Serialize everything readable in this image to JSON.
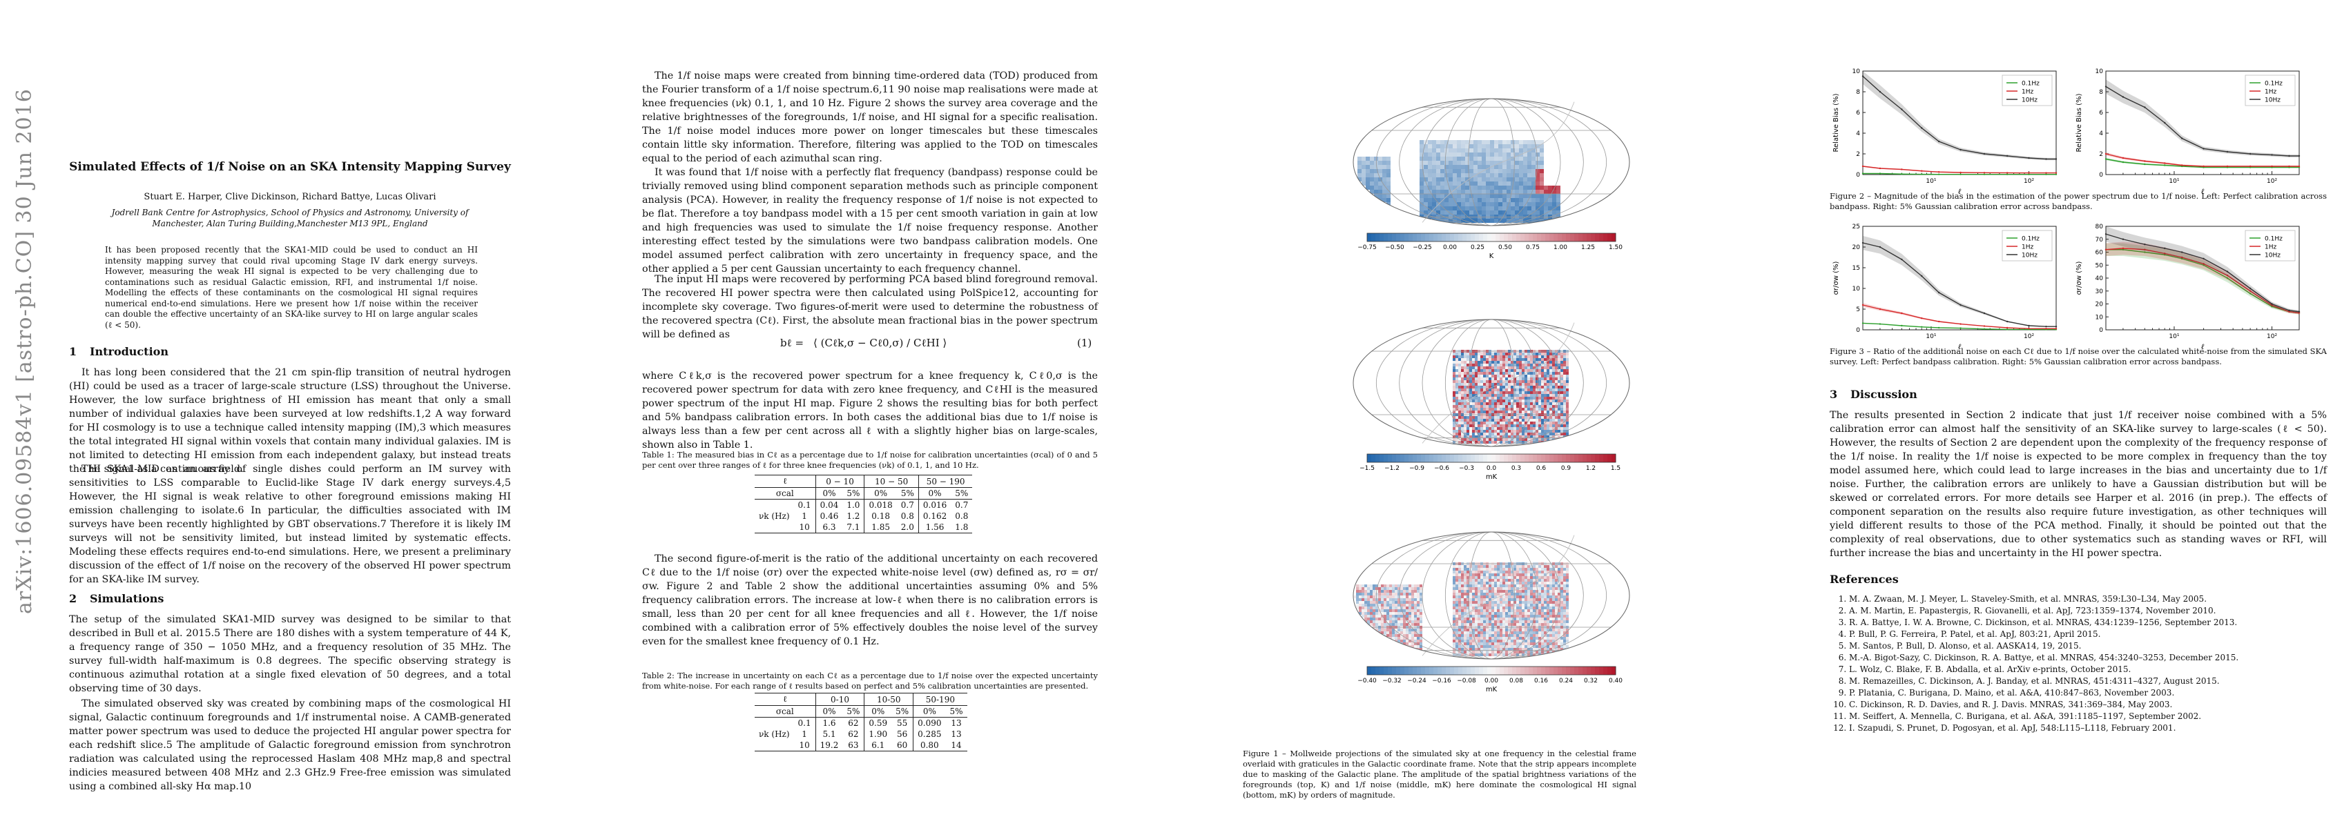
{
  "arxiv_stamp": "arXiv:1606.09584v1  [astro-ph.CO]  30 Jun 2016",
  "paper": {
    "title": "Simulated Effects of 1/f Noise on an SKA Intensity Mapping Survey",
    "authors": "Stuart E. Harper, Clive Dickinson, Richard Battye, Lucas Olivari",
    "affiliation": "Jodrell Bank Centre for Astrophysics, School of Physics and Astronomy, University of Manchester, Alan Turing Building,Manchester M13 9PL, England",
    "abstract": "It has been proposed recently that the SKA1-MID could be used to conduct an HI intensity mapping survey that could rival upcoming Stage IV dark energy surveys. However, measuring the weak HI signal is expected to be very challenging due to contaminations such as residual Galactic emission, RFI, and instrumental 1/f noise. Modelling the effects of these contaminants on the cosmological HI signal requires numerical end-to-end simulations. Here we present how 1/f noise within the receiver can double the effective uncertainty of an SKA-like survey to HI on large angular scales (ℓ < 50).",
    "sec1_num": "1",
    "sec1_title": "Introduction",
    "sec1_p1": "It has long been considered that the 21 cm spin-flip transition of neutral hydrogen (HI) could be used as a tracer of large-scale structure (LSS) throughout the Universe. However, the low surface brightness of HI emission has meant that only a small number of individual galaxies have been surveyed at low redshifts.1,2 A way forward for HI cosmology is to use a technique called intensity mapping (IM),3 which measures the total integrated HI signal within voxels that contain many individual galaxies. IM is not limited to detecting HI emission from each independent galaxy, but instead treats the HI signal as a continuous field.",
    "sec1_p2": "The SKA1-MID as an array of single dishes could perform an IM survey with sensitivities to LSS comparable to Euclid-like Stage IV dark energy surveys.4,5 However, the HI signal is weak relative to other foreground emissions making HI emission challenging to isolate.6 In particular, the difficulties associated with IM surveys have been recently highlighted by GBT observations.7 Therefore it is likely IM surveys will not be sensitivity limited, but instead limited by systematic effects. Modeling these effects requires end-to-end simulations. Here, we present a preliminary discussion of the effect of 1/f noise on the recovery of the observed HI power spectrum for an SKA-like IM survey.",
    "sec2_num": "2",
    "sec2_title": "Simulations",
    "sec2_p1": "The setup of the simulated SKA1-MID survey was designed to be similar to that described in Bull et al. 2015.5 There are 180 dishes with a system temperature of 44 K, a frequency range of 350 − 1050 MHz, and a frequency resolution of 35 MHz. The survey full-width half-maximum is 0.8 degrees. The specific observing strategy is continuous azimuthal rotation at a single fixed elevation of 50 degrees, and a total observing time of 30 days.",
    "sec2_p2": "The simulated observed sky was created by combining maps of the cosmological HI signal, Galactic continuum foregrounds and 1/f instrumental noise. A CAMB-generated matter power spectrum was used to deduce the projected HI angular power spectra for each redshift slice.5 The amplitude of Galactic foreground emission from synchrotron radiation was calculated using the reprocessed Haslam 408 MHz map,8 and spectral indicies measured between 408 MHz and 2.3 GHz.9 Free-free emission was simulated using a combined all-sky Hα map.10",
    "col2_p1": "The 1/f noise maps were created from binning time-ordered data (TOD) produced from the Fourier transform of a 1/f noise spectrum.6,11 90 noise map realisations were made at knee frequencies (νk) 0.1, 1, and 10 Hz. Figure 2 shows the survey area coverage and the relative brightnesses of the foregrounds, 1/f noise, and HI signal for a specific realisation. The 1/f noise model induces more power on longer timescales but these timescales contain little sky information. Therefore, filtering was applied to the TOD on timescales equal to the period of each azimuthal scan ring.",
    "col2_p2": "It was found that 1/f noise with a perfectly flat frequency (bandpass) response could be trivially removed using blind component separation methods such as principle component analysis (PCA). However, in reality the frequency response of 1/f noise is not expected to be flat. Therefore a toy bandpass model with a 15 per cent smooth variation in gain at low and high frequencies was used to simulate the 1/f noise frequency response. Another interesting effect tested by the simulations were two bandpass calibration models. One model assumed perfect calibration with zero uncertainty in frequency space, and the other applied a 5 per cent Gaussian uncertainty to each frequency channel.",
    "col2_p3": "The input HI maps were recovered by performing PCA based blind foreground removal. The recovered HI power spectra were then calculated using PolSpice12, accounting for incomplete sky coverage. Two figures-of-merit were used to determine the robustness of the recovered spectra (Cℓ). First, the absolute mean fractional bias in the power spectrum will be defined as",
    "eq_lhs": "bℓ =",
    "eq_body": "⟨ (Cℓk,σ − Cℓ0,σ) / CℓHI ⟩",
    "eq_num": "(1)",
    "col2_p4": "where Cℓk,σ is the recovered power spectrum for a knee frequency k, Cℓ0,σ is the recovered power spectrum for data with zero knee frequency, and CℓHI is the measured power spectrum of the input HI map. Figure 2 shows the resulting bias for both perfect and 5% bandpass calibration errors. In both cases the additional bias due to 1/f noise is always less than a few per cent across all ℓ with a slightly higher bias on large-scales, shown also in Table 1.",
    "table1_caption": "Table 1: The measured bias in Cℓ as a percentage due to 1/f noise for calibration uncertainties (σcal) of 0 and 5 per cent over three ranges of ℓ for three knee frequencies (νk) of 0.1, 1, and 10 Hz.",
    "col2_p5": "The second figure-of-merit is the ratio of the additional uncertainty on each recovered Cℓ due to the 1/f noise (σr) over the expected white-noise level (σw) defined as, rσ = σr/σw. Figure 2 and Table 2 show the additional uncertainties assuming 0% and 5% frequency calibration errors. The increase at low-ℓ when there is no calibration errors is small, less than 20 per cent for all knee frequencies and all ℓ. However, the 1/f noise combined with a calibration error of 5% effectively doubles the noise level of the survey even for the smallest knee frequency of 0.1 Hz.",
    "table2_caption": "Table 2: The increase in uncertainty on each Cℓ as a percentage due to 1/f noise over the expected uncertainty from white-noise. For each range of ℓ results based on perfect and 5% calibration uncertainties are presented.",
    "fig1_caption": "Figure 1 – Mollweide projections of the simulated sky at one frequency in the celestial frame overlaid with graticules in the Galactic coordinate frame. Note that the strip appears incomplete due to masking of the Galactic plane. The amplitude of the spatial brightness variations of the foregrounds (top, K) and 1/f noise (middle, mK) here dominate the cosmological HI signal (bottom, mK) by orders of magnitude.",
    "fig2_caption": "Figure 2 – Magnitude of the bias in the estimation of the power spectrum due to 1/f noise. Left: Perfect calibration across bandpass. Right: 5% Gaussian calibration error across bandpass.",
    "fig3_caption": "Figure 3 – Ratio of the additional noise on each Cℓ due to 1/f noise over the calculated white-noise from the simulated SKA survey. Left: Perfect bandpass calibration. Right: 5% Gaussian calibration error across bandpass.",
    "sec3_num": "3",
    "sec3_title": "Discussion",
    "sec3_p1": "The results presented in Section 2 indicate that just 1/f receiver noise combined with a 5% calibration error can almost half the sensitivity of an SKA-like survey to large-scales (ℓ < 50). However, the results of Section 2 are dependent upon the complexity of the frequency response of the 1/f noise. In reality the 1/f noise is expected to be more complex in frequency than the toy model assumed here, which could lead to large increases in the bias and uncertainty due to 1/f noise. Further, the calibration errors are unlikely to have a Gaussian distribution but will be skewed or correlated errors. For more details see Harper et al. 2016 (in prep.). The effects of component separation on the results also require future investigation, as other techniques will yield different results to those of the PCA method. Finally, it should be pointed out that the complexity of real observations, due to other systematics such as standing waves or RFI, will further increase the bias and uncertainty in the HI power spectra.",
    "refs_title": "References",
    "references": [
      "M. A. Zwaan, M. J. Meyer, L. Staveley-Smith, et al. MNRAS, 359:L30–L34, May 2005.",
      "A. M. Martin, E. Papastergis, R. Giovanelli, et al. ApJ, 723:1359–1374, November 2010.",
      "R. A. Battye, I. W. A. Browne, C. Dickinson, et al. MNRAS, 434:1239–1256, September 2013.",
      "P. Bull, P. G. Ferreira, P. Patel, et al. ApJ, 803:21, April 2015.",
      "M. Santos, P. Bull, D. Alonso, et al. AASKA14, 19, 2015.",
      "M.-A. Bigot-Sazy, C. Dickinson, R. A. Battye, et al. MNRAS, 454:3240–3253, December 2015.",
      "L. Wolz, C. Blake, F. B. Abdalla, et al. ArXiv e-prints, October 2015.",
      "M. Remazeilles, C. Dickinson, A. J. Banday, et al. MNRAS, 451:4311–4327, August 2015.",
      "P. Platania, C. Burigana, D. Maino, et al. A&A, 410:847–863, November 2003.",
      "C. Dickinson, R. D. Davies, and R. J. Davis. MNRAS, 341:369–384, May 2003.",
      "M. Seiffert, A. Mennella, C. Burigana, et al. A&A, 391:1185–1197, September 2002.",
      "I. Szapudi, S. Prunet, D. Pogosyan, et al. ApJ, 548:L115–L118, February 2001."
    ]
  },
  "table1": {
    "hdr_ell": "ℓ",
    "hdr_sigma": "σcal",
    "hdr_nu": "νk (Hz)",
    "ranges": [
      "0 − 10",
      "10 − 50",
      "50 − 190"
    ],
    "sub": [
      "0%",
      "5%",
      "0%",
      "5%",
      "0%",
      "5%"
    ],
    "rows": [
      {
        "nu": "0.1",
        "vals": [
          "0.04",
          "1.0",
          "0.018",
          "0.7",
          "0.016",
          "0.7"
        ]
      },
      {
        "nu": "1",
        "vals": [
          "0.46",
          "1.2",
          "0.18",
          "0.8",
          "0.162",
          "0.8"
        ]
      },
      {
        "nu": "10",
        "vals": [
          "6.3",
          "7.1",
          "1.85",
          "2.0",
          "1.56",
          "1.8"
        ]
      }
    ]
  },
  "table2": {
    "hdr_ell": "ℓ",
    "hdr_sigma": "σcal",
    "hdr_nu": "νk (Hz)",
    "ranges": [
      "0-10",
      "10-50",
      "50-190"
    ],
    "sub": [
      "0%",
      "5%",
      "0%",
      "5%",
      "0%",
      "5%"
    ],
    "rows": [
      {
        "nu": "0.1",
        "vals": [
          "1.6",
          "62",
          "0.59",
          "55",
          "0.090",
          "13"
        ]
      },
      {
        "nu": "1",
        "vals": [
          "5.1",
          "62",
          "1.90",
          "56",
          "0.285",
          "13"
        ]
      },
      {
        "nu": "10",
        "vals": [
          "19.2",
          "63",
          "6.1",
          "60",
          "0.80",
          "14"
        ]
      }
    ]
  },
  "fig1": {
    "maps": [
      {
        "unit": "K",
        "ticks": [
          "−0.75",
          "−0.50",
          "−0.25",
          "0.00",
          "0.25",
          "0.50",
          "0.75",
          "1.00",
          "1.25",
          "1.50"
        ]
      },
      {
        "unit": "mK",
        "ticks": [
          "−1.5",
          "−1.2",
          "−0.9",
          "−0.6",
          "−0.3",
          "0.0",
          "0.3",
          "0.6",
          "0.9",
          "1.2",
          "1.5"
        ]
      },
      {
        "unit": "mK",
        "ticks": [
          "−0.40",
          "−0.32",
          "−0.24",
          "−0.16",
          "−0.08",
          "0.00",
          "0.08",
          "0.16",
          "0.24",
          "0.32",
          "0.40"
        ]
      }
    ],
    "colors": {
      "blue": "#2166ac",
      "white": "#f7f7f7",
      "red": "#b2182b"
    }
  },
  "chart_data": [
    {
      "type": "line",
      "title": "",
      "xlabel": "ℓ",
      "ylabel": "Relative Bias (%)",
      "xscale": "log",
      "xlim": [
        2,
        190
      ],
      "ylim": [
        0,
        10
      ],
      "yticks": [
        "0",
        "2",
        "4",
        "6",
        "8",
        "10"
      ],
      "xticks": [
        "10¹",
        "10²"
      ],
      "legend_placement": "top-right",
      "x": [
        2,
        3,
        5,
        8,
        12,
        20,
        35,
        60,
        100,
        150,
        190
      ],
      "series": [
        {
          "name": "0.1Hz",
          "color": "#2ca02c",
          "values": [
            0.1,
            0.1,
            0.05,
            0.03,
            0.02,
            0.02,
            0.02,
            0.02,
            0.02,
            0.02,
            0.02
          ]
        },
        {
          "name": "1Hz",
          "color": "#d62728",
          "values": [
            0.8,
            0.6,
            0.5,
            0.35,
            0.25,
            0.2,
            0.18,
            0.17,
            0.16,
            0.16,
            0.16
          ]
        },
        {
          "name": "10Hz",
          "color": "#333333",
          "values": [
            9.5,
            8.0,
            6.3,
            4.5,
            3.2,
            2.4,
            2.0,
            1.8,
            1.6,
            1.5,
            1.5
          ]
        }
      ]
    },
    {
      "type": "line",
      "title": "",
      "xlabel": "ℓ",
      "ylabel": "Relative Bias (%)",
      "xscale": "log",
      "xlim": [
        2,
        190
      ],
      "ylim": [
        0,
        10
      ],
      "yticks": [
        "0",
        "2",
        "4",
        "6",
        "8",
        "10"
      ],
      "xticks": [
        "10¹",
        "10²"
      ],
      "legend_placement": "top-right",
      "x": [
        2,
        3,
        5,
        8,
        12,
        20,
        35,
        60,
        100,
        150,
        190
      ],
      "series": [
        {
          "name": "0.1Hz",
          "color": "#2ca02c",
          "values": [
            1.5,
            1.2,
            1.0,
            0.9,
            0.8,
            0.7,
            0.7,
            0.7,
            0.7,
            0.7,
            0.7
          ]
        },
        {
          "name": "1Hz",
          "color": "#d62728",
          "values": [
            2.0,
            1.6,
            1.3,
            1.1,
            0.9,
            0.8,
            0.8,
            0.8,
            0.8,
            0.8,
            0.8
          ]
        },
        {
          "name": "10Hz",
          "color": "#333333",
          "values": [
            8.5,
            7.5,
            6.5,
            5.0,
            3.5,
            2.5,
            2.2,
            2.0,
            1.9,
            1.8,
            1.8
          ]
        }
      ]
    },
    {
      "type": "line",
      "title": "",
      "xlabel": "ℓ",
      "ylabel": "σr/σw (%)",
      "xscale": "log",
      "xlim": [
        2,
        190
      ],
      "ylim": [
        0,
        25
      ],
      "yticks": [
        "0",
        "5",
        "10",
        "15",
        "20",
        "25"
      ],
      "xticks": [
        "10¹",
        "10²"
      ],
      "legend_placement": "top-right",
      "x": [
        2,
        3,
        5,
        8,
        12,
        20,
        35,
        60,
        100,
        150,
        190
      ],
      "series": [
        {
          "name": "0.1Hz",
          "color": "#2ca02c",
          "values": [
            1.6,
            1.4,
            1.0,
            0.7,
            0.5,
            0.4,
            0.2,
            0.1,
            0.09,
            0.09,
            0.09
          ]
        },
        {
          "name": "1Hz",
          "color": "#d62728",
          "values": [
            6,
            5,
            4,
            2.8,
            2.0,
            1.4,
            0.9,
            0.5,
            0.3,
            0.28,
            0.28
          ]
        },
        {
          "name": "10Hz",
          "color": "#333333",
          "values": [
            21,
            20,
            17,
            13,
            9,
            6,
            4,
            2,
            1,
            0.8,
            0.8
          ]
        }
      ]
    },
    {
      "type": "line",
      "title": "",
      "xlabel": "ℓ",
      "ylabel": "σr/σw (%)",
      "xscale": "log",
      "xlim": [
        2,
        190
      ],
      "ylim": [
        0,
        80
      ],
      "yticks": [
        "0",
        "10",
        "20",
        "30",
        "40",
        "50",
        "60",
        "70",
        "80"
      ],
      "xticks": [
        "10¹",
        "10²"
      ],
      "legend_placement": "top-right",
      "x": [
        2,
        3,
        5,
        8,
        12,
        20,
        35,
        60,
        100,
        150,
        190
      ],
      "series": [
        {
          "name": "0.1Hz",
          "color": "#2ca02c",
          "values": [
            62,
            62,
            60,
            58,
            55,
            50,
            40,
            28,
            18,
            14,
            13
          ]
        },
        {
          "name": "1Hz",
          "color": "#d62728",
          "values": [
            62,
            63,
            62,
            59,
            56,
            51,
            42,
            30,
            19,
            14,
            13
          ]
        },
        {
          "name": "10Hz",
          "color": "#333333",
          "values": [
            74,
            70,
            66,
            63,
            60,
            55,
            45,
            32,
            20,
            15,
            14
          ]
        }
      ]
    }
  ]
}
